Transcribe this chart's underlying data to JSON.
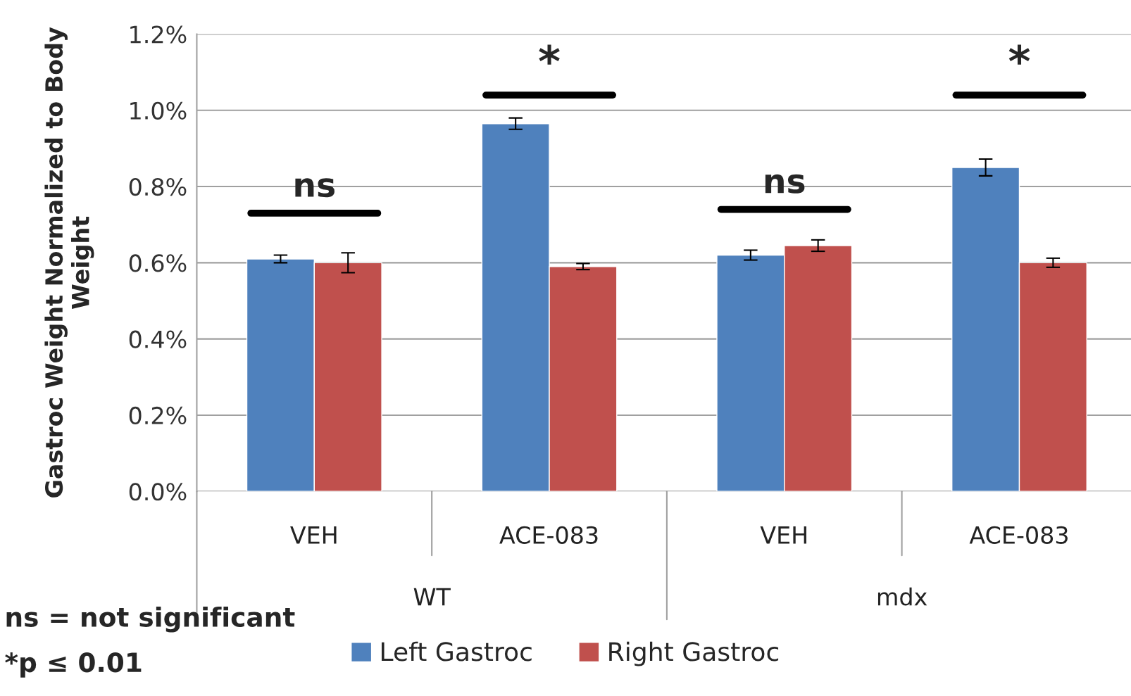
{
  "chart_data": {
    "type": "bar",
    "ylabel": "Gastroc Weight Normalized to Body Weight",
    "categories": [
      "VEH",
      "ACE-083",
      "VEH",
      "ACE-083"
    ],
    "series": [
      {
        "name": "Left Gastroc",
        "color": "#4f81bd",
        "values": [
          0.61,
          0.965,
          0.62,
          0.85
        ],
        "errors": [
          0.01,
          0.015,
          0.013,
          0.022
        ]
      },
      {
        "name": "Right Gastroc",
        "color": "#c0504d",
        "values": [
          0.6,
          0.59,
          0.645,
          0.6
        ],
        "errors": [
          0.026,
          0.008,
          0.015,
          0.012
        ]
      }
    ],
    "ylim": [
      0,
      1.2
    ],
    "yticks": [
      {
        "value": 0,
        "label": "0.0%"
      },
      {
        "value": 0.2,
        "label": "0.2%"
      },
      {
        "value": 0.4,
        "label": "0.4%"
      },
      {
        "value": 0.6,
        "label": "0.6%"
      },
      {
        "value": 0.8,
        "label": "0.8%"
      },
      {
        "value": 1.0,
        "label": "1.0%"
      },
      {
        "value": 1.2,
        "label": "1.2%"
      }
    ],
    "grid": "y",
    "legend": "bottom",
    "annotations": [
      "ns",
      "*",
      "ns",
      "*",
      "WT",
      "mdx",
      "ns = not significant",
      "*p ≤ 0.01"
    ]
  }
}
